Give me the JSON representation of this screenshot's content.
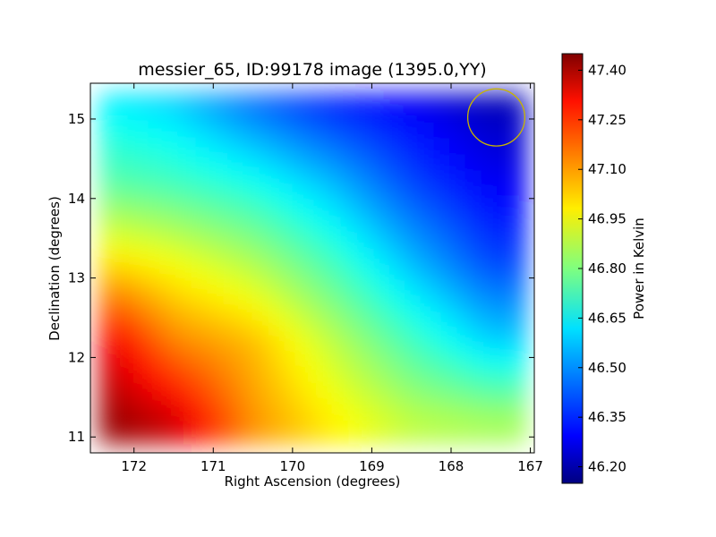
{
  "chart_data": {
    "type": "heatmap",
    "title": "messier_65, ID:99178 image (1395.0,YY)",
    "xlabel": "Right Ascension (degrees)",
    "ylabel": "Declination (degrees)",
    "colorbar_label": "Power in Kelvin",
    "colormap": "jet",
    "xlim": [
      172.55,
      166.95
    ],
    "ylim": [
      10.8,
      15.45
    ],
    "x_ticks": [
      172,
      171,
      170,
      169,
      168,
      167
    ],
    "y_ticks": [
      11,
      12,
      13,
      14,
      15
    ],
    "color_range": [
      46.15,
      47.45
    ],
    "colorbar_ticks": [
      "46.20",
      "46.35",
      "46.50",
      "46.65",
      "46.80",
      "46.95",
      "47.10",
      "47.25",
      "47.40"
    ],
    "ra_samples": [
      172.25,
      171.5,
      170.5,
      169.5,
      168.5,
      167.5
    ],
    "dec_samples": [
      15.2,
      14.2,
      13.2,
      12.2,
      11.2
    ],
    "values": [
      [
        46.62,
        46.58,
        46.45,
        46.35,
        46.3,
        46.22
      ],
      [
        46.75,
        46.72,
        46.66,
        46.55,
        46.4,
        46.3
      ],
      [
        47.0,
        46.95,
        46.86,
        46.72,
        46.55,
        46.4
      ],
      [
        47.3,
        47.12,
        47.05,
        46.88,
        46.72,
        46.58
      ],
      [
        47.42,
        47.35,
        47.1,
        46.98,
        46.88,
        46.85
      ]
    ],
    "circle_marker": {
      "ra": 167.43,
      "dec": 15.02,
      "radius_deg": 0.36,
      "color": "#c8b400"
    },
    "grid": false,
    "colors": {
      "frame": "#000000",
      "background": "#ffffff"
    }
  }
}
